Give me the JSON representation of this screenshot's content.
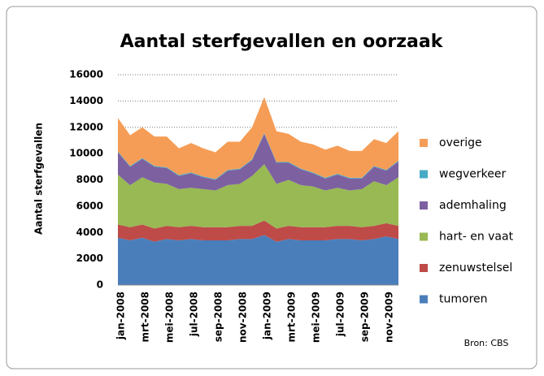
{
  "chart_data": {
    "type": "stacked_area",
    "title": "Aantal sterfgevallen en oorzaak",
    "y_label": "Aantal sterfgevallen",
    "source": "Bron: CBS",
    "categories": [
      "jan-2008",
      null,
      "mrt-2008",
      null,
      "mei-2008",
      null,
      "jul-2008",
      null,
      "sep-2008",
      null,
      "nov-2008",
      null,
      "jan-2009",
      null,
      "mrt-2009",
      null,
      "mei-2009",
      null,
      "jul-2009",
      null,
      "sep-2009",
      null,
      "nov-2009",
      null
    ],
    "ylim": [
      0,
      16000
    ],
    "yticks": [
      0,
      2000,
      4000,
      6000,
      8000,
      10000,
      12000,
      14000,
      16000
    ],
    "grid": true,
    "series": [
      {
        "name": "tumoren",
        "color": "#4a7ebb",
        "values": [
          3600,
          3400,
          3600,
          3300,
          3500,
          3400,
          3500,
          3400,
          3400,
          3400,
          3500,
          3500,
          3800,
          3300,
          3500,
          3400,
          3400,
          3400,
          3500,
          3500,
          3400,
          3500,
          3700,
          3500
        ]
      },
      {
        "name": "zenuwstelsel",
        "color": "#be4b48",
        "values": [
          1000,
          1000,
          1000,
          1000,
          1000,
          1000,
          1000,
          1000,
          1000,
          1000,
          1000,
          1000,
          1100,
          1000,
          1000,
          1000,
          1000,
          1000,
          1000,
          1000,
          1000,
          1000,
          1000,
          1000
        ]
      },
      {
        "name": "hart- en vaat",
        "color": "#98b954",
        "values": [
          3800,
          3200,
          3600,
          3500,
          3200,
          2900,
          2900,
          2900,
          2800,
          3200,
          3200,
          3800,
          4300,
          3400,
          3500,
          3200,
          3100,
          2800,
          2900,
          2700,
          2900,
          3400,
          2900,
          3700
        ]
      },
      {
        "name": "ademhaling",
        "color": "#7d60a0",
        "values": [
          1700,
          1400,
          1400,
          1200,
          1200,
          1000,
          1100,
          900,
          800,
          1100,
          1100,
          1200,
          2300,
          1600,
          1300,
          1200,
          1000,
          900,
          1000,
          900,
          800,
          1100,
          1100,
          1200
        ]
      },
      {
        "name": "wegverkeer",
        "color": "#46aac5",
        "values": [
          60,
          60,
          60,
          60,
          60,
          60,
          60,
          60,
          60,
          60,
          60,
          60,
          60,
          60,
          60,
          60,
          60,
          60,
          60,
          60,
          60,
          60,
          60,
          60
        ]
      },
      {
        "name": "overige",
        "color": "#f59d56",
        "values": [
          2540,
          2340,
          2340,
          2240,
          2340,
          2040,
          2240,
          2140,
          2040,
          2140,
          2040,
          2440,
          2740,
          2340,
          2140,
          2040,
          2140,
          2140,
          2140,
          2040,
          2040,
          2040,
          2040,
          2240
        ]
      }
    ]
  }
}
